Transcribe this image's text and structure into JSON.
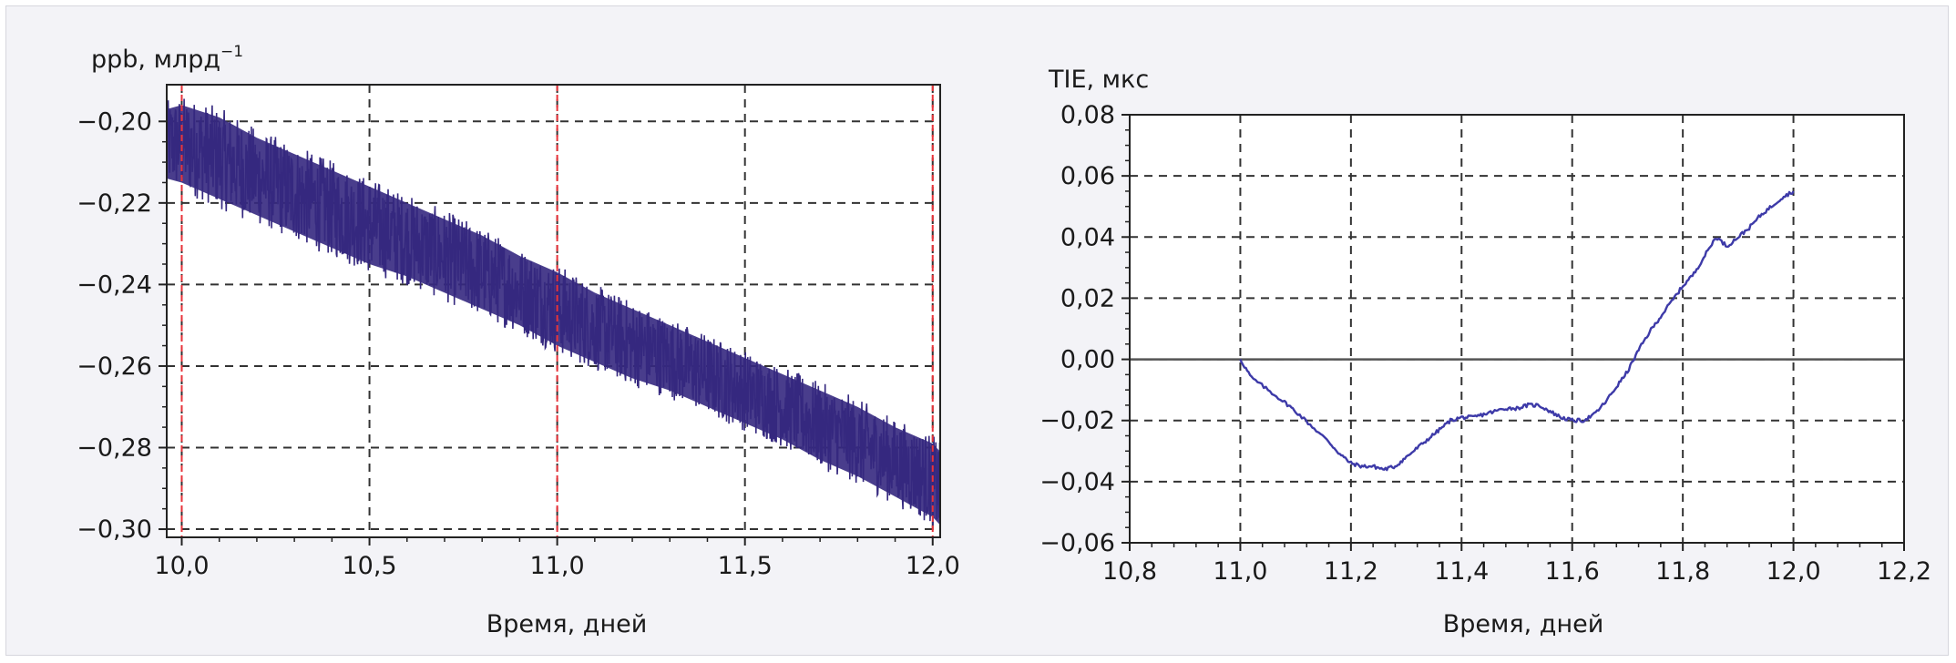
{
  "chart_data": [
    {
      "type": "line",
      "ylabel": "ppb, млрд",
      "ylabel_sup": "−1",
      "xlabel": "Время, дней",
      "xlim": [
        9.96,
        12.02
      ],
      "ylim": [
        -0.302,
        -0.191
      ],
      "xticks": [
        10.0,
        10.5,
        11.0,
        11.5,
        12.0
      ],
      "xtick_labels": [
        "10,0",
        "10,5",
        "11,0",
        "11,5",
        "12,0"
      ],
      "yticks": [
        -0.2,
        -0.22,
        -0.24,
        -0.26,
        -0.28,
        -0.3
      ],
      "ytick_labels": [
        "−0,20",
        "−0,22",
        "−0,24",
        "−0,26",
        "−0,28",
        "−0,30"
      ],
      "grid": true,
      "vertical_markers": [
        10.0,
        11.0,
        12.0
      ],
      "series": [
        {
          "x": [
            9.96,
            10.0,
            10.1,
            10.2,
            10.3,
            10.4,
            10.5,
            10.6,
            10.7,
            10.8,
            10.9,
            11.0,
            11.1,
            11.2,
            11.3,
            11.4,
            11.5,
            11.6,
            11.7,
            11.8,
            11.9,
            12.0,
            12.02
          ],
          "y_low": [
            -0.214,
            -0.215,
            -0.219,
            -0.223,
            -0.227,
            -0.231,
            -0.235,
            -0.238,
            -0.242,
            -0.246,
            -0.25,
            -0.255,
            -0.259,
            -0.263,
            -0.266,
            -0.27,
            -0.274,
            -0.278,
            -0.283,
            -0.287,
            -0.292,
            -0.297,
            -0.299
          ],
          "y_high": [
            -0.197,
            -0.196,
            -0.199,
            -0.204,
            -0.208,
            -0.212,
            -0.216,
            -0.22,
            -0.224,
            -0.228,
            -0.233,
            -0.237,
            -0.242,
            -0.246,
            -0.25,
            -0.254,
            -0.258,
            -0.262,
            -0.266,
            -0.27,
            -0.275,
            -0.279,
            -0.281
          ]
        }
      ],
      "colors": {
        "series": "#35287f",
        "marker": "#e8333a",
        "grid": "#333333",
        "plot_bg": "#ffffff"
      }
    },
    {
      "type": "line",
      "ylabel": "TIE, мкс",
      "xlabel": "Время, дней",
      "xlim": [
        10.8,
        12.2
      ],
      "ylim": [
        -0.06,
        0.08
      ],
      "xticks": [
        10.8,
        11.0,
        11.2,
        11.4,
        11.6,
        11.8,
        12.0,
        12.2
      ],
      "xtick_labels": [
        "10,8",
        "11,0",
        "11,2",
        "11,4",
        "11,6",
        "11,8",
        "12,0",
        "12,2"
      ],
      "yticks": [
        0.08,
        0.06,
        0.04,
        0.02,
        0.0,
        -0.02,
        -0.04,
        -0.06
      ],
      "ytick_labels": [
        "0,08",
        "0,06",
        "0,04",
        "0,02",
        "0,00",
        "−0,02",
        "−0,04",
        "−0,06"
      ],
      "grid": true,
      "zero_line": true,
      "series": [
        {
          "x": [
            11.0,
            11.02,
            11.05,
            11.08,
            11.1,
            11.13,
            11.16,
            11.18,
            11.2,
            11.22,
            11.24,
            11.26,
            11.28,
            11.3,
            11.32,
            11.34,
            11.36,
            11.38,
            11.4,
            11.42,
            11.44,
            11.46,
            11.48,
            11.5,
            11.52,
            11.54,
            11.56,
            11.58,
            11.6,
            11.62,
            11.64,
            11.66,
            11.68,
            11.7,
            11.72,
            11.74,
            11.76,
            11.78,
            11.8,
            11.82,
            11.84,
            11.86,
            11.88,
            11.9,
            11.92,
            11.94,
            11.96,
            11.98,
            12.0
          ],
          "y": [
            0.0,
            -0.006,
            -0.01,
            -0.014,
            -0.017,
            -0.022,
            -0.027,
            -0.031,
            -0.034,
            -0.035,
            -0.035,
            -0.036,
            -0.035,
            -0.032,
            -0.029,
            -0.026,
            -0.023,
            -0.02,
            -0.019,
            -0.019,
            -0.018,
            -0.017,
            -0.016,
            -0.016,
            -0.015,
            -0.015,
            -0.017,
            -0.019,
            -0.02,
            -0.02,
            -0.018,
            -0.014,
            -0.009,
            -0.004,
            0.003,
            0.009,
            0.014,
            0.019,
            0.024,
            0.028,
            0.034,
            0.04,
            0.037,
            0.04,
            0.043,
            0.047,
            0.05,
            0.053,
            0.055
          ]
        }
      ],
      "colors": {
        "series": "#3d3aa8",
        "grid": "#333333",
        "zero_line": "#555555",
        "plot_bg": "#ffffff"
      }
    }
  ]
}
